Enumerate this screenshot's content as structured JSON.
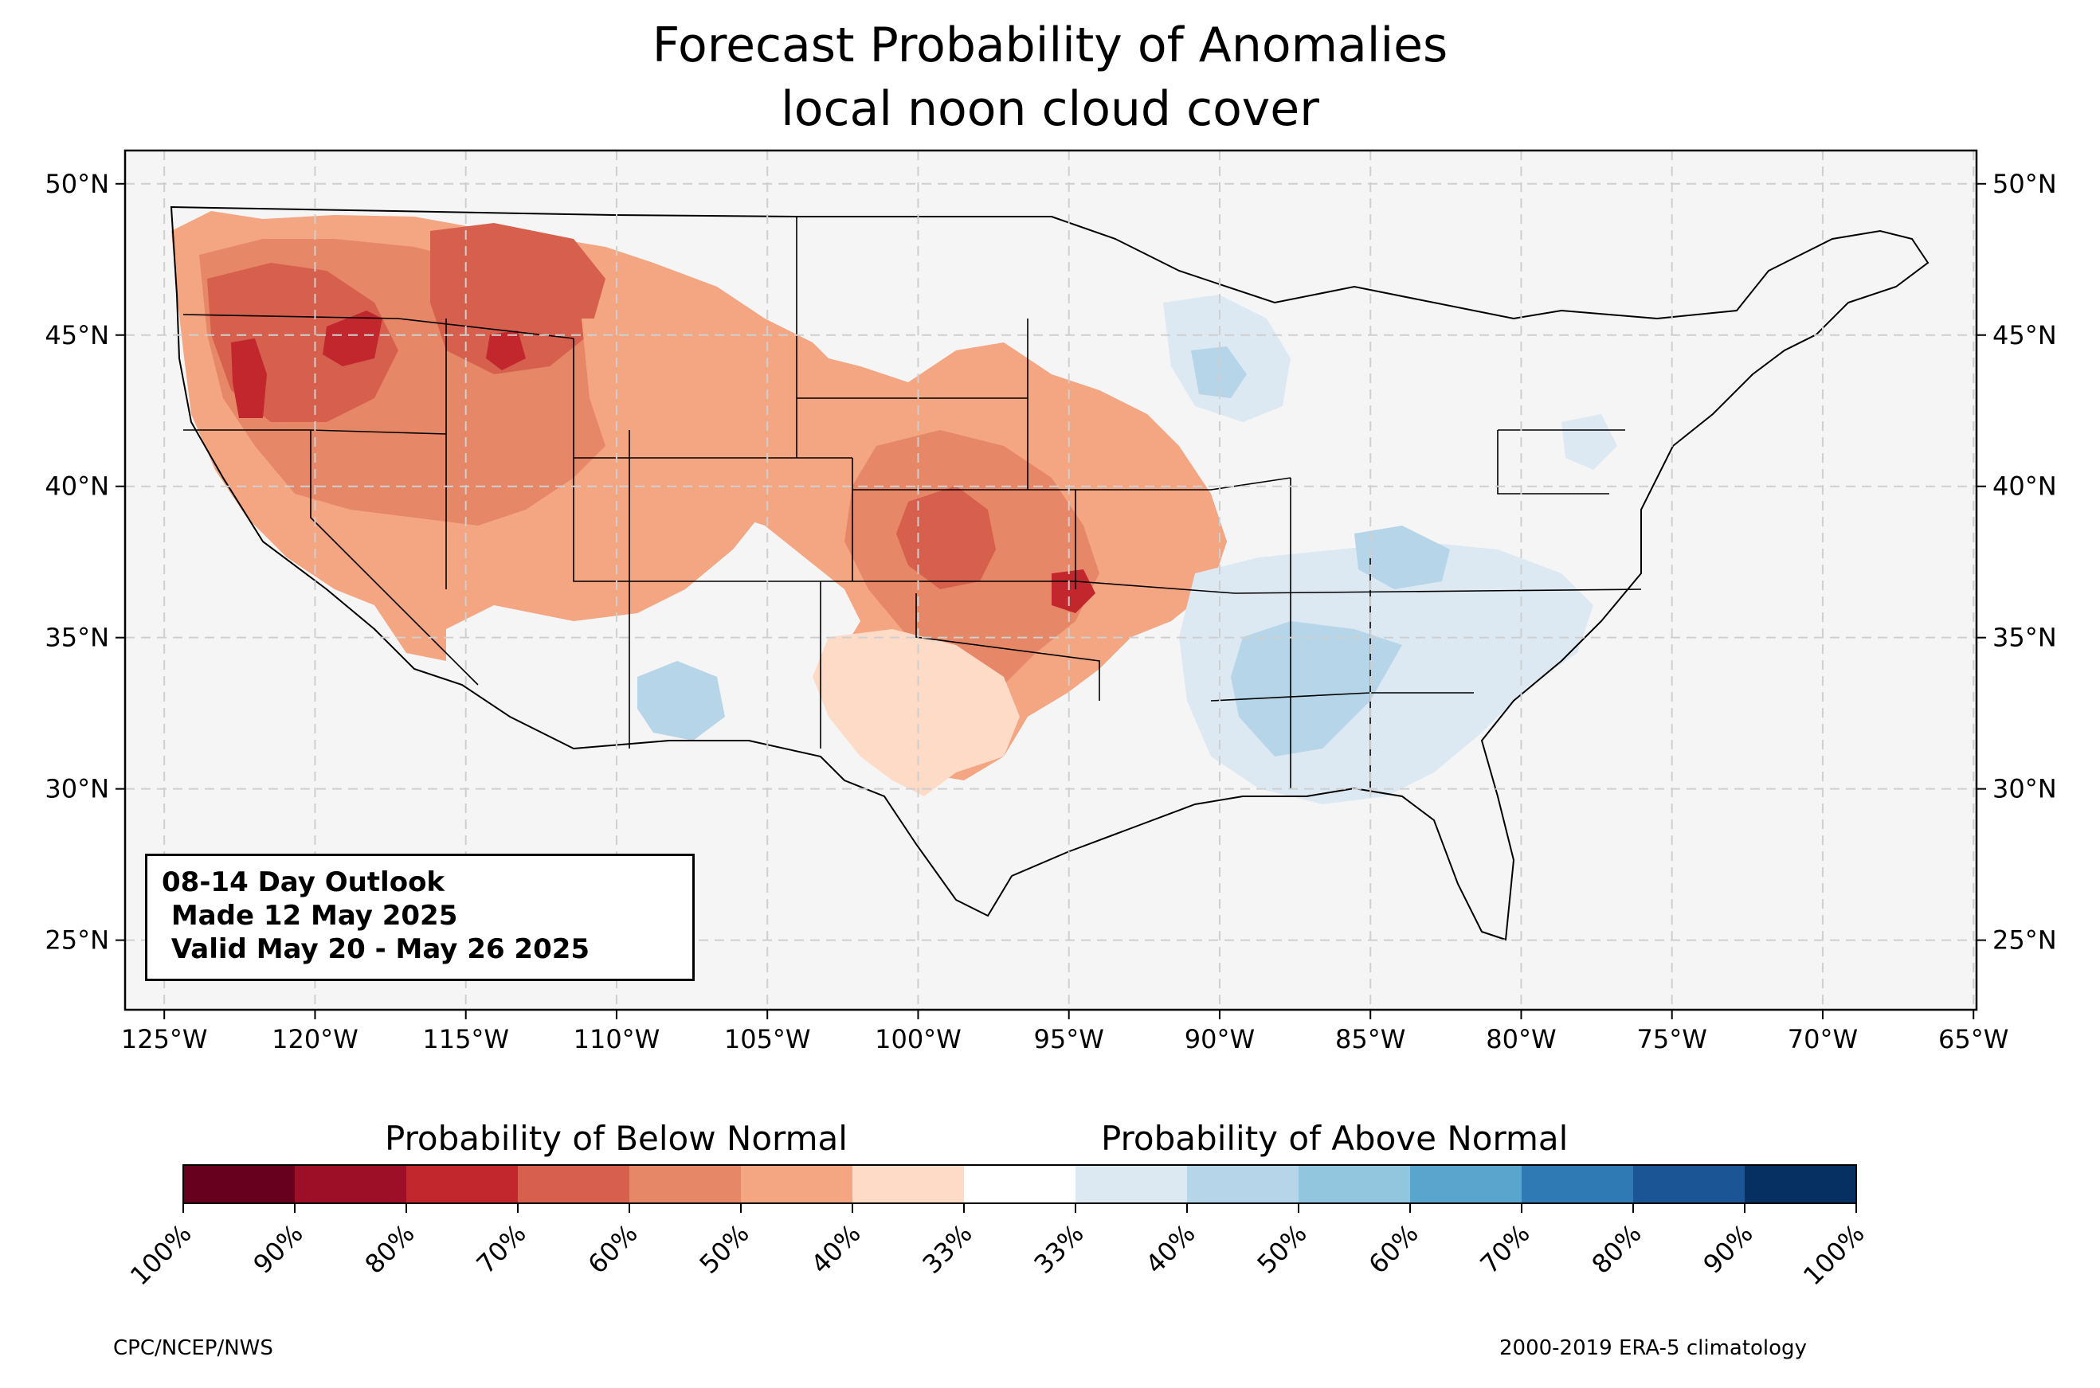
{
  "title_line1": "Forecast Probability of Anomalies",
  "title_line2": "local noon cloud cover",
  "info": {
    "line1": "08-14 Day Outlook",
    "line2": " Made 12 May 2025",
    "line3": " Valid May 20 - May 26 2025"
  },
  "map": {
    "lat_labels": [
      "50°N",
      "45°N",
      "40°N",
      "35°N",
      "30°N",
      "25°N"
    ],
    "lat_values": [
      50,
      45,
      40,
      35,
      30,
      25
    ],
    "lon_labels": [
      "125°W",
      "120°W",
      "115°W",
      "110°W",
      "105°W",
      "100°W",
      "95°W",
      "90°W",
      "85°W",
      "80°W",
      "75°W",
      "70°W",
      "65°W"
    ],
    "lon_values": [
      -125,
      -120,
      -115,
      -110,
      -105,
      -100,
      -95,
      -90,
      -85,
      -80,
      -75,
      -70,
      -65
    ],
    "extent": {
      "lon": [
        -126.3,
        -64.9
      ],
      "lat": [
        22.7,
        51.1
      ]
    },
    "land_color": "#f5f5f5",
    "grid": true
  },
  "colorbar": {
    "below_label": "Probability of Below Normal",
    "above_label": "Probability of Above Normal",
    "colors": [
      "#67001f",
      "#9d0f27",
      "#c1272d",
      "#d6604d",
      "#e68867",
      "#f4a582",
      "#fddbc7",
      "#ffffff",
      "#dde9f2",
      "#b6d5e8",
      "#92c5de",
      "#5aa5cd",
      "#2f79b5",
      "#1c5596",
      "#053061"
    ],
    "tick_labels": [
      "100%",
      "90%",
      "80%",
      "70%",
      "60%",
      "50%",
      "40%",
      "33%",
      "33%",
      "40%",
      "50%",
      "60%",
      "70%",
      "80%",
      "90%",
      "100%"
    ]
  },
  "footer": {
    "left": "CPC/NCEP/NWS",
    "right": "2000-2019 ERA-5 climatology"
  }
}
